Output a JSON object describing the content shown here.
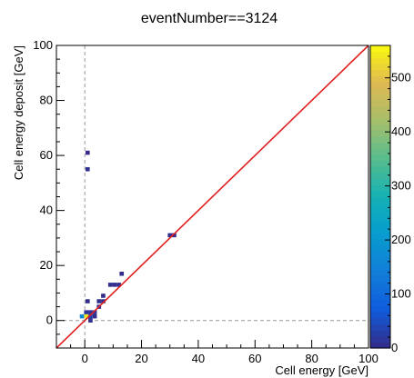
{
  "chart_data": {
    "type": "heatmap",
    "title": "eventNumber==3124",
    "xlabel": "Cell energy [GeV]",
    "ylabel": "Cell energy deposit [GeV]",
    "xlim": [
      -10,
      100
    ],
    "ylim": [
      -10,
      100
    ],
    "x_ticks": [
      0,
      20,
      40,
      60,
      80,
      100
    ],
    "y_ticks": [
      0,
      20,
      40,
      60,
      80,
      100
    ],
    "colorbar": {
      "range": [
        0,
        560
      ],
      "ticks": [
        0,
        100,
        200,
        300,
        400,
        500
      ]
    },
    "bin_width": 1.5,
    "cells": [
      {
        "x": 1,
        "y": 61,
        "count": 5
      },
      {
        "x": 1,
        "y": 55,
        "count": 8
      },
      {
        "x": 30,
        "y": 31,
        "count": 6
      },
      {
        "x": 31.5,
        "y": 31,
        "count": 4
      },
      {
        "x": 13,
        "y": 17,
        "count": 5
      },
      {
        "x": 9,
        "y": 13,
        "count": 6
      },
      {
        "x": 10.5,
        "y": 13,
        "count": 6
      },
      {
        "x": 12,
        "y": 13,
        "count": 5
      },
      {
        "x": 6.5,
        "y": 9,
        "count": 4
      },
      {
        "x": 5,
        "y": 7,
        "count": 6
      },
      {
        "x": 6.5,
        "y": 7,
        "count": 5
      },
      {
        "x": 1,
        "y": 7,
        "count": 5
      },
      {
        "x": 5,
        "y": 5,
        "count": 8
      },
      {
        "x": 3.5,
        "y": 3,
        "count": 10
      },
      {
        "x": 2,
        "y": 3,
        "count": 12
      },
      {
        "x": 0.5,
        "y": 3,
        "count": 15
      },
      {
        "x": 3.5,
        "y": 1.5,
        "count": 5
      },
      {
        "x": 2,
        "y": 1.5,
        "count": 30
      },
      {
        "x": 0.5,
        "y": 1.5,
        "count": 540
      },
      {
        "x": -1,
        "y": 1.5,
        "count": 160
      },
      {
        "x": 2,
        "y": 0,
        "count": 8
      }
    ],
    "diagonal_line": {
      "from": [
        -10,
        -10
      ],
      "to": [
        100,
        100
      ],
      "color": "#e02020"
    },
    "dashed_lines": [
      {
        "orientation": "vertical",
        "value": 0,
        "color": "#999999"
      },
      {
        "orientation": "horizontal",
        "value": 0,
        "color": "#999999"
      }
    ]
  }
}
